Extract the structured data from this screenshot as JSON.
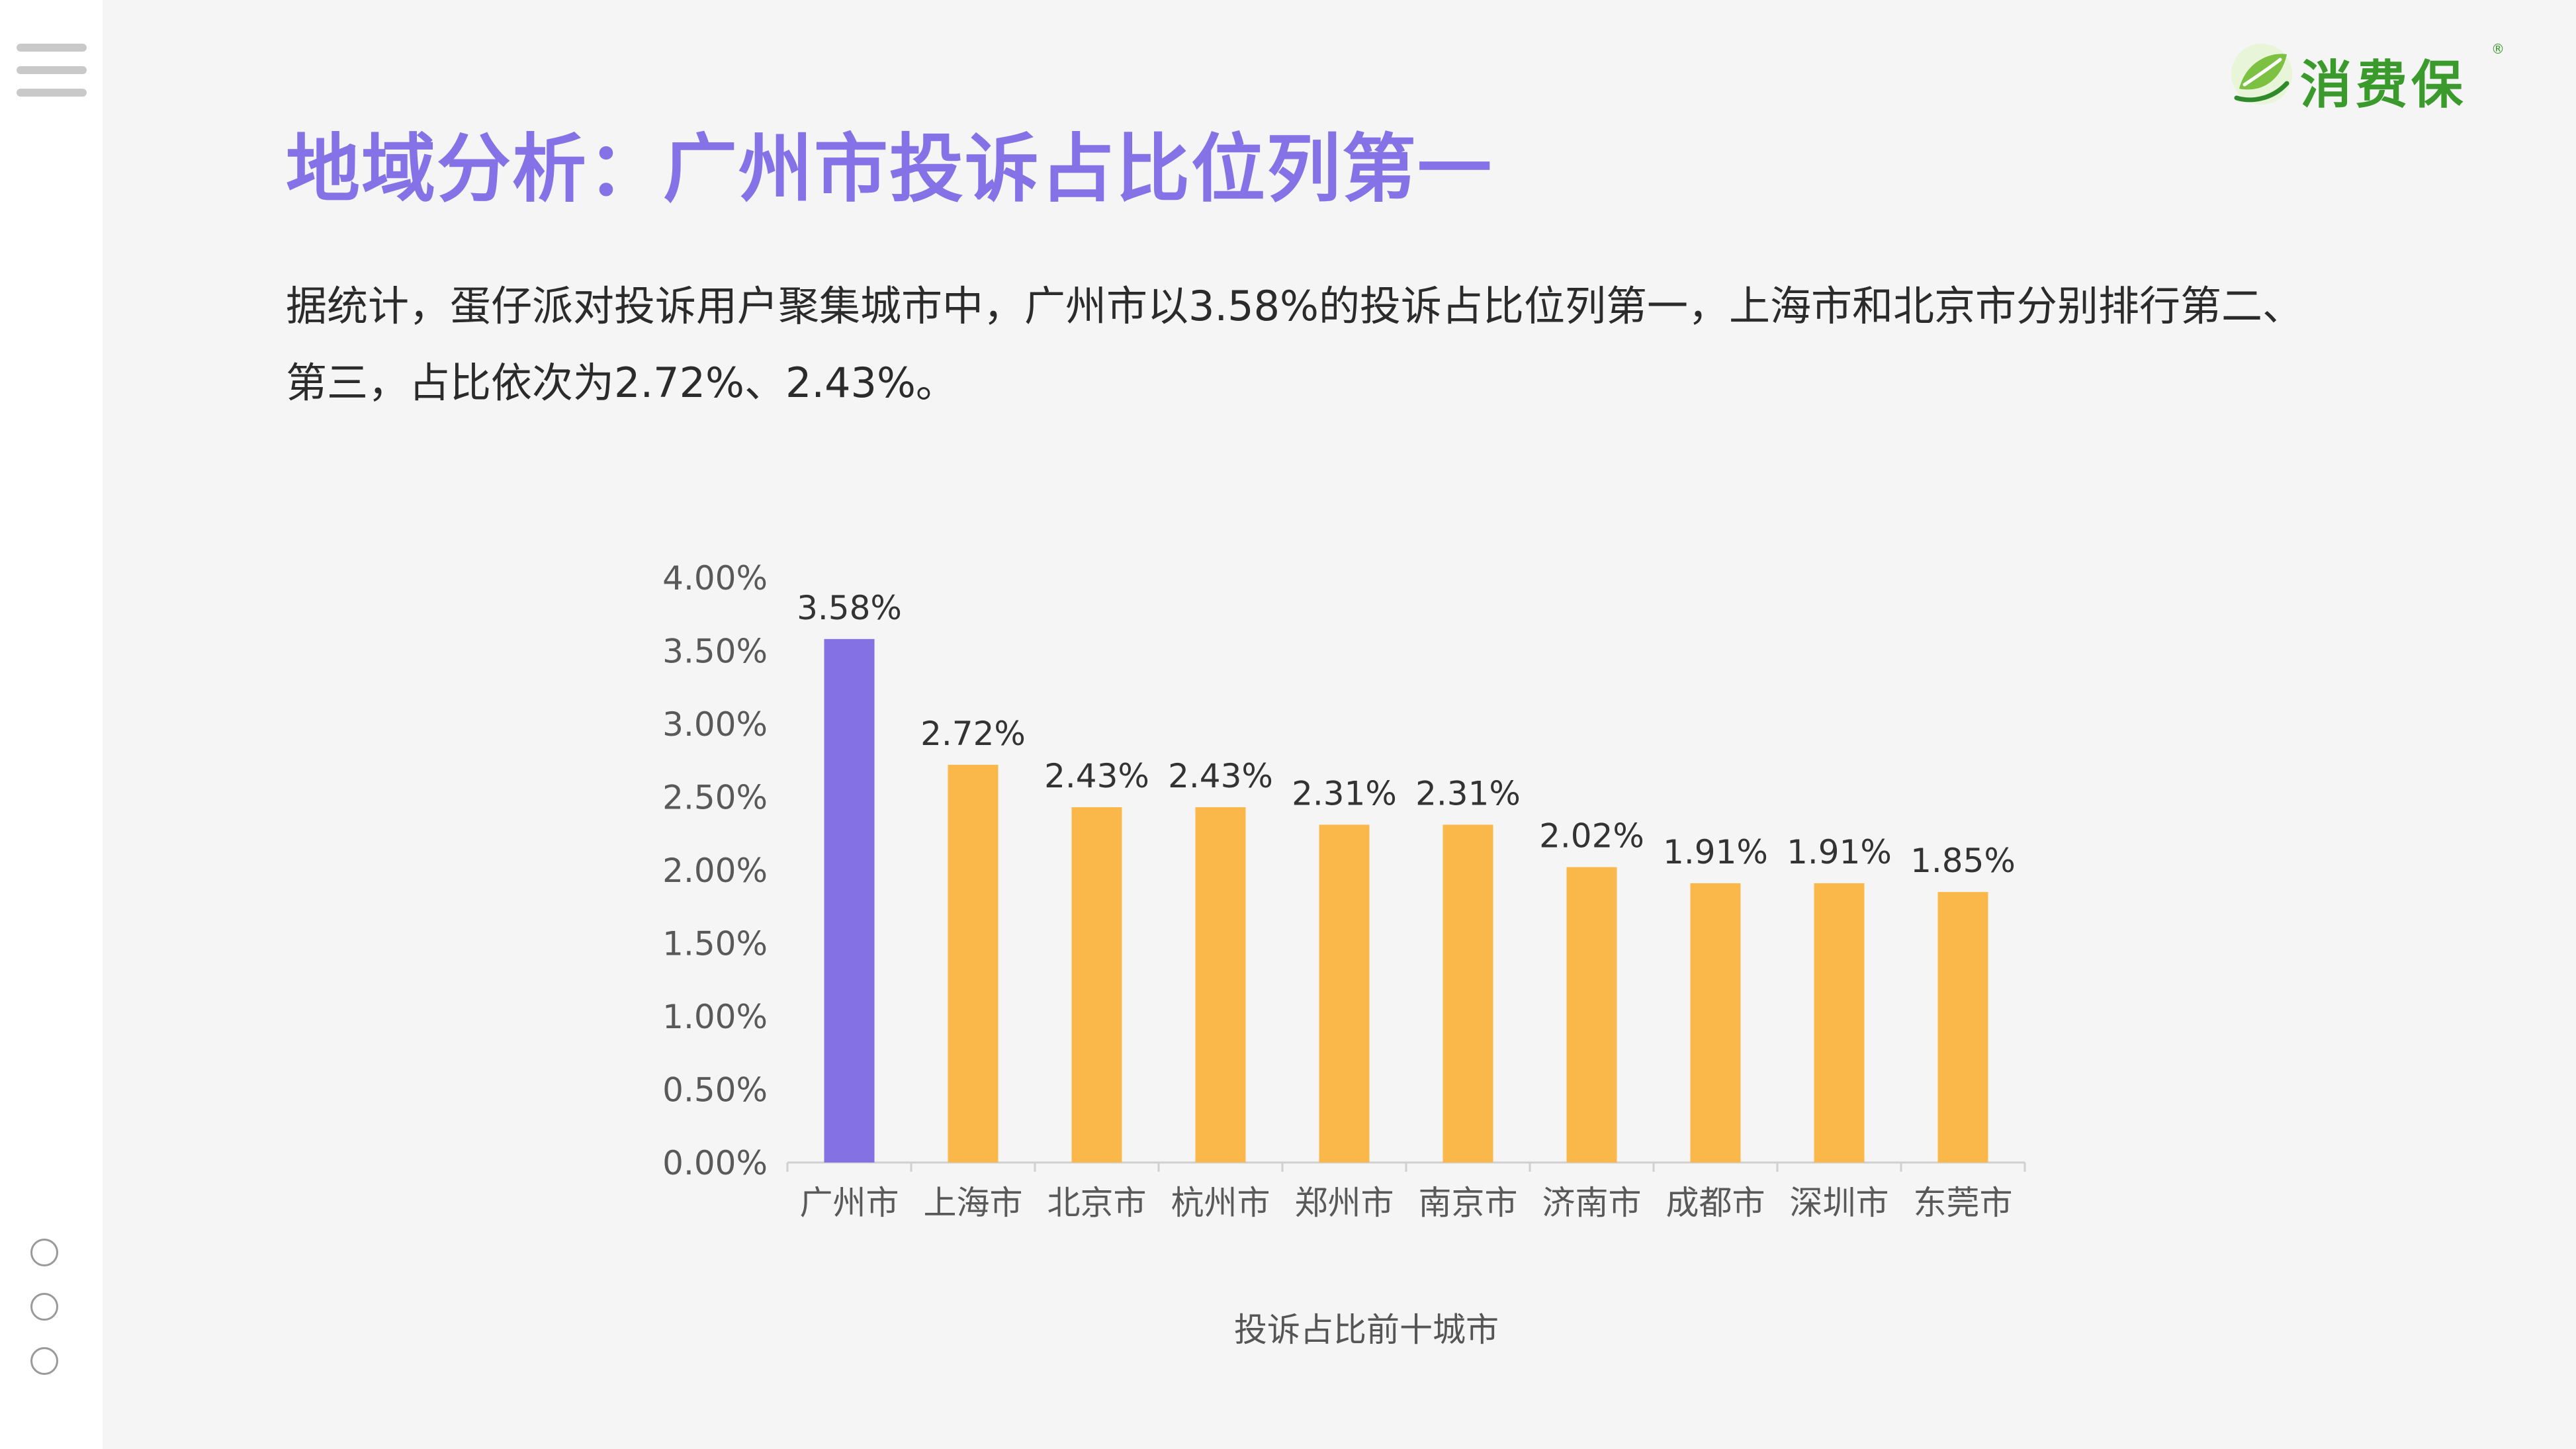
{
  "brand": {
    "name": "消费保",
    "registered_mark": "®",
    "color": "#3a9a2c"
  },
  "title": "地域分析：广州市投诉占比位列第一",
  "intro": "据统计，蛋仔派对投诉用户聚集城市中，广州市以3.58%的投诉占比位列第一，上海市和北京市分别排行第二、第三，占比依次为2.72%、2.43%。",
  "navigation": {
    "menu_icon": "hamburger-menu-icon",
    "page_dots": 3
  },
  "colors": {
    "title": "#8472e6",
    "highlight_bar": "#8471e3",
    "bar": "#fbb84a",
    "axis_text": "#595959",
    "label_text": "#333333"
  },
  "chart_data": {
    "type": "bar",
    "categories": [
      "广州市",
      "上海市",
      "北京市",
      "杭州市",
      "郑州市",
      "南京市",
      "济南市",
      "成都市",
      "深圳市",
      "东莞市"
    ],
    "values": [
      3.58,
      2.72,
      2.43,
      2.43,
      2.31,
      2.31,
      2.02,
      1.91,
      1.91,
      1.85
    ],
    "data_labels": [
      "3.58%",
      "2.72%",
      "2.43%",
      "2.43%",
      "2.31%",
      "2.31%",
      "2.02%",
      "1.91%",
      "1.91%",
      "1.85%"
    ],
    "y_ticks": [
      "0.00%",
      "0.50%",
      "1.00%",
      "1.50%",
      "2.00%",
      "2.50%",
      "3.00%",
      "3.50%",
      "4.00%"
    ],
    "ylim": [
      0,
      4
    ],
    "unit": "%",
    "highlight_index": 0,
    "caption": "投诉占比前十城市",
    "grid": false,
    "legend": "none"
  }
}
